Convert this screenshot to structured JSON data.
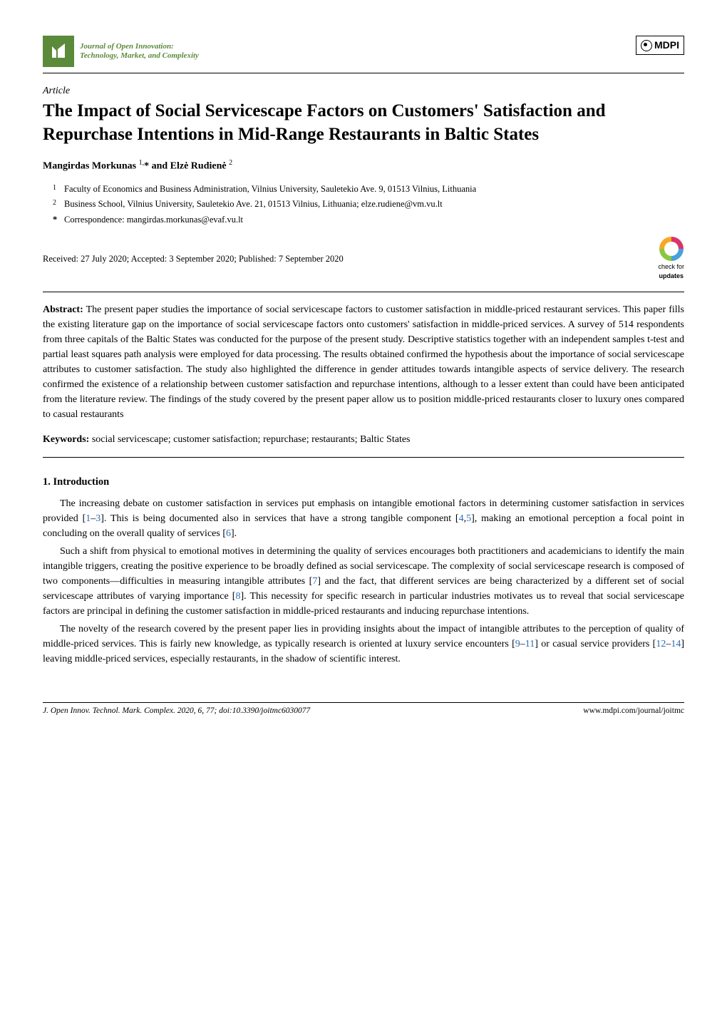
{
  "colors": {
    "brand_green": "#5a8a3a",
    "link_blue": "#2a6cb0",
    "text": "#000000",
    "background": "#ffffff"
  },
  "header": {
    "journal_name_line1": "Journal of Open Innovation:",
    "journal_name_line2": "Technology, Market, and Complexity",
    "publisher": "MDPI"
  },
  "article": {
    "type": "Article",
    "title": "The Impact of Social Servicescape Factors on Customers' Satisfaction and Repurchase Intentions in Mid-Range Restaurants in Baltic States",
    "authors_html": "Mangirdas Morkunas <sup>1,</sup>* and Elzė Rudienė <sup>2</sup>",
    "affiliations": [
      {
        "num": "1",
        "text": "Faculty of Economics and Business Administration, Vilnius University, Sauletekio Ave. 9, 01513 Vilnius, Lithuania"
      },
      {
        "num": "2",
        "text": "Business School, Vilnius University, Sauletekio Ave. 21, 01513 Vilnius, Lithuania; elze.rudiene@vm.vu.lt"
      }
    ],
    "correspondence": "Correspondence: mangirdas.morkunas@evaf.vu.lt",
    "dates": "Received: 27 July 2020; Accepted: 3 September 2020; Published: 7 September 2020",
    "check_updates_top": "check for",
    "check_updates_bottom": "updates"
  },
  "abstract": {
    "label": "Abstract:",
    "text": "The present paper studies the importance of social servicescape factors to customer satisfaction in middle-priced restaurant services. This paper fills the existing literature gap on the importance of social servicescape factors onto customers' satisfaction in middle-priced services. A survey of 514 respondents from three capitals of the Baltic States was conducted for the purpose of the present study. Descriptive statistics together with an independent samples t-test and partial least squares path analysis were employed for data processing. The results obtained confirmed the hypothesis about the importance of social servicescape attributes to customer satisfaction. The study also highlighted the difference in gender attitudes towards intangible aspects of service delivery. The research confirmed the existence of a relationship between customer satisfaction and repurchase intentions, although to a lesser extent than could have been anticipated from the literature review. The findings of the study covered by the present paper allow us to position middle-priced restaurants closer to luxury ones compared to casual restaurants",
    "keywords_label": "Keywords:",
    "keywords": "social servicescape; customer satisfaction; repurchase; restaurants; Baltic States"
  },
  "sections": {
    "intro_heading": "1. Introduction",
    "para1_pre": "The increasing debate on customer satisfaction in services put emphasis on intangible emotional factors in determining customer satisfaction in services provided [",
    "cite1": "1",
    "dash1": "–",
    "cite2": "3",
    "para1_mid1": "]. This is being documented also in services that have a strong tangible component [",
    "cite3": "4",
    "comma1": ",",
    "cite4": "5",
    "para1_mid2": "], making an emotional perception a focal point in concluding on the overall quality of services [",
    "cite5": "6",
    "para1_end": "].",
    "para2_pre": "Such a shift from physical to emotional motives in determining the quality of services encourages both practitioners and academicians to identify the main intangible triggers, creating the positive experience to be broadly defined as social servicescape. The complexity of social servicescape research is composed of two components—difficulties in measuring intangible attributes [",
    "cite6": "7",
    "para2_mid1": "] and the fact, that different services are being characterized by a different set of social servicescape attributes of varying importance [",
    "cite7": "8",
    "para2_end": "]. This necessity for specific research in particular industries motivates us to reveal that social servicescape factors are principal in defining the customer satisfaction in middle-priced restaurants and inducing repurchase intentions.",
    "para3_pre": "The novelty of the research covered by the present paper lies in providing insights about the impact of intangible attributes to the perception of quality of middle-priced services. This is fairly new knowledge, as typically research is oriented at luxury service encounters [",
    "cite8": "9",
    "dash2": "–",
    "cite9": "11",
    "para3_mid1": "] or casual service providers [",
    "cite10": "12",
    "dash3": "–",
    "cite11": "14",
    "para3_end": "] leaving middle-priced services, especially restaurants, in the shadow of scientific interest."
  },
  "footer": {
    "left": "J. Open Innov. Technol. Mark. Complex. 2020, 6, 77; doi:10.3390/joitmc6030077",
    "right": "www.mdpi.com/journal/joitmc"
  }
}
